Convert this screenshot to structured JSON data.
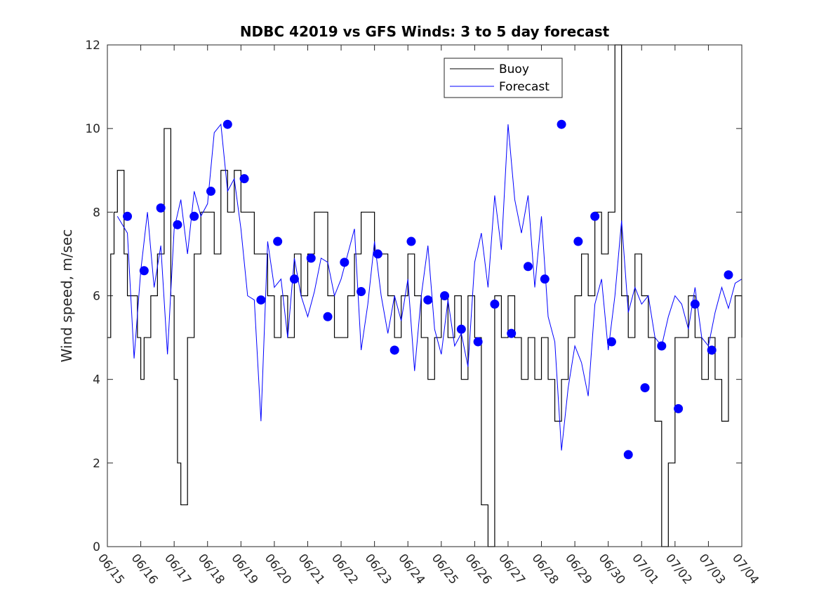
{
  "chart_data": {
    "type": "line",
    "title": "NDBC 42019 vs GFS Winds: 3 to 5 day forecast",
    "xlabel": "",
    "ylabel": "Wind speed, m/sec",
    "ylim": [
      0,
      12
    ],
    "yticks": [
      0,
      2,
      4,
      6,
      8,
      10,
      12
    ],
    "xlim": [
      0,
      19
    ],
    "xtick_labels": [
      "06/15",
      "06/16",
      "06/17",
      "06/18",
      "06/19",
      "06/20",
      "06/21",
      "06/22",
      "06/23",
      "06/24",
      "06/25",
      "06/26",
      "06/27",
      "06/28",
      "06/29",
      "06/30",
      "07/01",
      "07/02",
      "07/03",
      "07/04"
    ],
    "legend": {
      "position": "top-right",
      "entries": [
        "Buoy",
        "Forecast"
      ]
    },
    "colors": {
      "buoy": "#000000",
      "forecast": "#0000ff",
      "axis": "#262626"
    },
    "series": [
      {
        "name": "Buoy",
        "x": [
          0,
          0.1,
          0.2,
          0.3,
          0.5,
          0.6,
          0.7,
          0.9,
          1.0,
          1.1,
          1.3,
          1.5,
          1.7,
          1.9,
          2.0,
          2.1,
          2.2,
          2.4,
          2.6,
          2.8,
          3.0,
          3.2,
          3.4,
          3.6,
          3.8,
          4.0,
          4.2,
          4.4,
          4.6,
          4.8,
          5.0,
          5.2,
          5.4,
          5.6,
          5.8,
          6.0,
          6.2,
          6.4,
          6.6,
          6.8,
          7.0,
          7.2,
          7.4,
          7.6,
          7.8,
          8.0,
          8.2,
          8.4,
          8.6,
          8.8,
          9.0,
          9.2,
          9.4,
          9.6,
          9.8,
          10.0,
          10.2,
          10.4,
          10.6,
          10.8,
          11.0,
          11.2,
          11.4,
          11.6,
          11.8,
          12.0,
          12.2,
          12.4,
          12.6,
          12.8,
          13.0,
          13.2,
          13.4,
          13.6,
          13.8,
          14.0,
          14.2,
          14.4,
          14.6,
          14.8,
          15.0,
          15.2,
          15.4,
          15.6,
          15.8,
          16.0,
          16.2,
          16.4,
          16.6,
          16.8,
          17.0,
          17.2,
          17.4,
          17.6,
          17.8,
          18.0,
          18.2,
          18.4,
          18.6,
          18.8,
          19.0
        ],
        "values": [
          5,
          7,
          8,
          9,
          7,
          6,
          6,
          5,
          4,
          5,
          6,
          7,
          10,
          6,
          4,
          2,
          1,
          5,
          7,
          8,
          8,
          7,
          9,
          8,
          9,
          8,
          8,
          7,
          7,
          6,
          5,
          6,
          5,
          7,
          6,
          7,
          8,
          8,
          6,
          5,
          5,
          6,
          7,
          8,
          8,
          7,
          7,
          6,
          5,
          6,
          7,
          6,
          5,
          4,
          5,
          6,
          5,
          6,
          4,
          6,
          5,
          1,
          0,
          6,
          5,
          6,
          5,
          4,
          5,
          4,
          5,
          4,
          3,
          4,
          5,
          6,
          7,
          6,
          8,
          7,
          8,
          12,
          6,
          5,
          7,
          6,
          5,
          3,
          0,
          2,
          5,
          5,
          6,
          5,
          4,
          5,
          4,
          3,
          5,
          6,
          5
        ]
      },
      {
        "name": "Forecast",
        "x": [
          0.3,
          0.6,
          0.8,
          1.0,
          1.2,
          1.4,
          1.6,
          1.8,
          2.0,
          2.2,
          2.4,
          2.6,
          2.8,
          3.0,
          3.2,
          3.4,
          3.6,
          3.8,
          4.0,
          4.2,
          4.4,
          4.6,
          4.8,
          5.0,
          5.2,
          5.4,
          5.6,
          5.8,
          6.0,
          6.2,
          6.4,
          6.6,
          6.8,
          7.0,
          7.2,
          7.4,
          7.6,
          7.8,
          8.0,
          8.2,
          8.4,
          8.6,
          8.8,
          9.0,
          9.2,
          9.4,
          9.6,
          9.8,
          10.0,
          10.2,
          10.4,
          10.6,
          10.8,
          11.0,
          11.2,
          11.4,
          11.6,
          11.8,
          12.0,
          12.2,
          12.4,
          12.6,
          12.8,
          13.0,
          13.2,
          13.4,
          13.6,
          13.8,
          14.0,
          14.2,
          14.4,
          14.6,
          14.8,
          15.0,
          15.2,
          15.4,
          15.6,
          15.8,
          16.0,
          16.2,
          16.4,
          16.6,
          16.8,
          17.0,
          17.2,
          17.4,
          17.6,
          17.8,
          18.0,
          18.2,
          18.4,
          18.6,
          18.8,
          19.0
        ],
        "values": [
          7.9,
          7.5,
          4.5,
          6.6,
          8.0,
          6.2,
          7.2,
          4.6,
          7.6,
          8.3,
          7.0,
          8.5,
          7.9,
          8.2,
          9.9,
          10.1,
          8.5,
          8.8,
          7.6,
          6.0,
          5.9,
          3.0,
          7.3,
          6.2,
          6.4,
          5.0,
          6.9,
          6.0,
          5.5,
          6.1,
          6.9,
          6.8,
          6.0,
          6.4,
          7.0,
          7.6,
          4.7,
          5.8,
          7.3,
          6.0,
          5.1,
          6.0,
          5.4,
          6.4,
          4.2,
          6.0,
          7.2,
          5.2,
          4.6,
          5.9,
          4.8,
          5.1,
          4.3,
          6.8,
          7.5,
          6.2,
          8.4,
          7.1,
          10.1,
          8.3,
          7.5,
          8.4,
          6.2,
          7.9,
          5.5,
          4.9,
          2.3,
          3.8,
          4.8,
          4.4,
          3.6,
          5.8,
          6.4,
          4.7,
          6.0,
          7.8,
          5.6,
          6.2,
          5.8,
          6.0,
          5.0,
          4.8,
          5.5,
          6.0,
          5.8,
          5.2,
          6.2,
          5.0,
          4.8,
          5.6,
          6.2,
          5.7,
          6.3,
          6.4
        ]
      }
    ],
    "markers": {
      "name": "Forecast",
      "x": [
        0.6,
        1.1,
        1.6,
        2.1,
        2.6,
        3.1,
        3.6,
        4.1,
        4.6,
        5.1,
        5.6,
        6.1,
        6.6,
        7.1,
        7.6,
        8.1,
        8.6,
        9.1,
        9.6,
        10.1,
        10.6,
        11.1,
        11.6,
        12.1,
        12.6,
        13.1,
        13.6,
        14.1,
        14.6,
        15.1,
        15.6,
        16.1,
        16.6,
        17.1,
        17.6,
        18.1,
        18.6
      ],
      "values": [
        7.9,
        6.6,
        8.1,
        7.7,
        7.9,
        8.5,
        10.1,
        8.8,
        5.9,
        7.3,
        6.4,
        6.9,
        5.5,
        6.8,
        6.1,
        7.0,
        4.7,
        7.3,
        5.9,
        6.0,
        5.2,
        4.9,
        5.8,
        5.1,
        6.7,
        6.4,
        10.1,
        7.3,
        7.9,
        4.9,
        2.2,
        3.8,
        4.8,
        3.3,
        5.8,
        4.7,
        6.5
      ]
    }
  }
}
